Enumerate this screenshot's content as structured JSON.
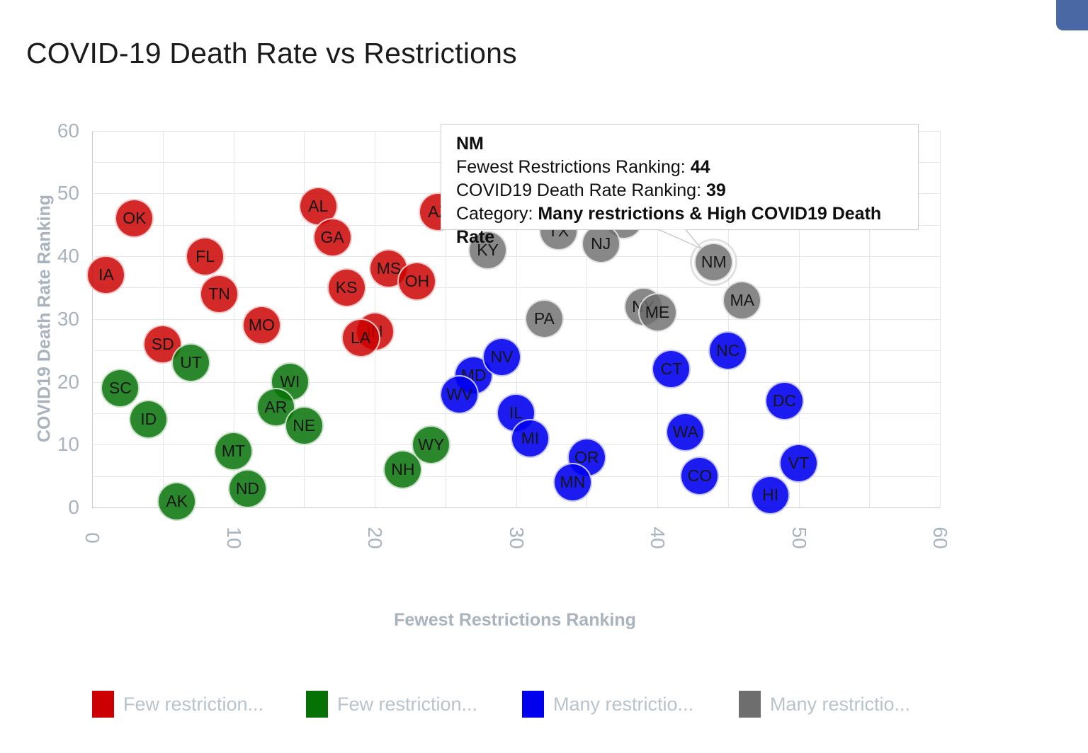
{
  "page": {
    "title": "COVID-19 Death Rate vs Restrictions"
  },
  "corner_widget": {
    "color": "#4a69a4"
  },
  "tooltip": {
    "state": "NM",
    "line1_label": "Fewest Restrictions Ranking: ",
    "line1_value": "44",
    "line2_label": "COVID19 Death Rate Ranking: ",
    "line2_value": "39",
    "line3_label": "Category: ",
    "line3_value": "Many restrictions & High COVID19 Death Rate"
  },
  "chart_data": {
    "type": "scatter",
    "title": "COVID-19 Death Rate vs Restrictions",
    "xlabel": "Fewest Restrictions Ranking",
    "ylabel": "COVID19 Death Rate Ranking",
    "xlim": [
      0,
      60
    ],
    "ylim": [
      0,
      60
    ],
    "grid_step": 5,
    "tick_step": 10,
    "grid": true,
    "legend_position": "bottom",
    "highlighted_point": "NM",
    "categories": [
      {
        "id": "few-restrictions-high-death",
        "color": "#cc0000",
        "legend_label": "Few restriction..."
      },
      {
        "id": "few-restrictions-low-death",
        "color": "#067206",
        "legend_label": "Few restriction..."
      },
      {
        "id": "many-restrictions-low-death",
        "color": "#0000ee",
        "legend_label": "Many restrictio..."
      },
      {
        "id": "many-restrictions-high-death",
        "color": "#6e6e6e",
        "legend_label": "Many restrictio..."
      }
    ],
    "points": [
      {
        "label": "IA",
        "x": 1,
        "y": 37,
        "cat": 0
      },
      {
        "label": "OK",
        "x": 3,
        "y": 46,
        "cat": 0
      },
      {
        "label": "FL",
        "x": 8,
        "y": 40,
        "cat": 0
      },
      {
        "label": "TN",
        "x": 9,
        "y": 34,
        "cat": 0
      },
      {
        "label": "SD",
        "x": 5,
        "y": 26,
        "cat": 0
      },
      {
        "label": "MO",
        "x": 12,
        "y": 29,
        "cat": 0
      },
      {
        "label": "AL",
        "x": 16,
        "y": 48,
        "cat": 0
      },
      {
        "label": "GA",
        "x": 17,
        "y": 43,
        "cat": 0
      },
      {
        "label": "KS",
        "x": 18,
        "y": 35,
        "cat": 0
      },
      {
        "label": "MS",
        "x": 21,
        "y": 38,
        "cat": 0
      },
      {
        "label": "OH",
        "x": 23,
        "y": 36,
        "cat": 0
      },
      {
        "label": "IN",
        "x": 20,
        "y": 28,
        "cat": 0
      },
      {
        "label": "LA",
        "x": 19,
        "y": 27,
        "cat": 0
      },
      {
        "label": "AZ",
        "x": 24.5,
        "y": 47,
        "cat": 0
      },
      {
        "label": "SC",
        "x": 2,
        "y": 19,
        "cat": 1
      },
      {
        "label": "ID",
        "x": 4,
        "y": 14,
        "cat": 1
      },
      {
        "label": "AK",
        "x": 6,
        "y": 1,
        "cat": 1
      },
      {
        "label": "UT",
        "x": 7,
        "y": 23,
        "cat": 1
      },
      {
        "label": "MT",
        "x": 10,
        "y": 9,
        "cat": 1
      },
      {
        "label": "ND",
        "x": 11,
        "y": 3,
        "cat": 1
      },
      {
        "label": "WI",
        "x": 14,
        "y": 20,
        "cat": 1
      },
      {
        "label": "AR",
        "x": 13,
        "y": 16,
        "cat": 1
      },
      {
        "label": "NE",
        "x": 15,
        "y": 13,
        "cat": 1
      },
      {
        "label": "NH",
        "x": 22,
        "y": 6,
        "cat": 1
      },
      {
        "label": "WY",
        "x": 24,
        "y": 10,
        "cat": 1
      },
      {
        "label": "MD",
        "x": 27,
        "y": 21,
        "cat": 2
      },
      {
        "label": "NV",
        "x": 29,
        "y": 24,
        "cat": 2
      },
      {
        "label": "WV",
        "x": 26,
        "y": 18,
        "cat": 2
      },
      {
        "label": "IL",
        "x": 30,
        "y": 15,
        "cat": 2
      },
      {
        "label": "MI",
        "x": 31,
        "y": 11,
        "cat": 2
      },
      {
        "label": "OR",
        "x": 35,
        "y": 8,
        "cat": 2
      },
      {
        "label": "MN",
        "x": 34,
        "y": 4,
        "cat": 2
      },
      {
        "label": "CT",
        "x": 41,
        "y": 22,
        "cat": 2
      },
      {
        "label": "NC",
        "x": 45,
        "y": 25,
        "cat": 2
      },
      {
        "label": "WA",
        "x": 42,
        "y": 12,
        "cat": 2
      },
      {
        "label": "CO",
        "x": 43,
        "y": 5,
        "cat": 2
      },
      {
        "label": "DC",
        "x": 49,
        "y": 17,
        "cat": 2
      },
      {
        "label": "VT",
        "x": 50,
        "y": 7,
        "cat": 2
      },
      {
        "label": "HI",
        "x": 48,
        "y": 2,
        "cat": 2
      },
      {
        "label": "",
        "x": 37.6,
        "y": 45.8,
        "cat": 3
      },
      {
        "label": "KY",
        "x": 28,
        "y": 41,
        "cat": 3
      },
      {
        "label": "PA",
        "x": 32,
        "y": 30,
        "cat": 3
      },
      {
        "label": "TX",
        "x": 33,
        "y": 44,
        "cat": 3
      },
      {
        "label": "NJ",
        "x": 36,
        "y": 42,
        "cat": 3
      },
      {
        "label": "NY",
        "x": 39,
        "y": 32,
        "cat": 3
      },
      {
        "label": "ME",
        "x": 40,
        "y": 31,
        "cat": 3
      },
      {
        "label": "MA",
        "x": 46,
        "y": 33,
        "cat": 3
      },
      {
        "label": "NM",
        "x": 44,
        "y": 39,
        "cat": 3,
        "highlight": true
      }
    ]
  }
}
